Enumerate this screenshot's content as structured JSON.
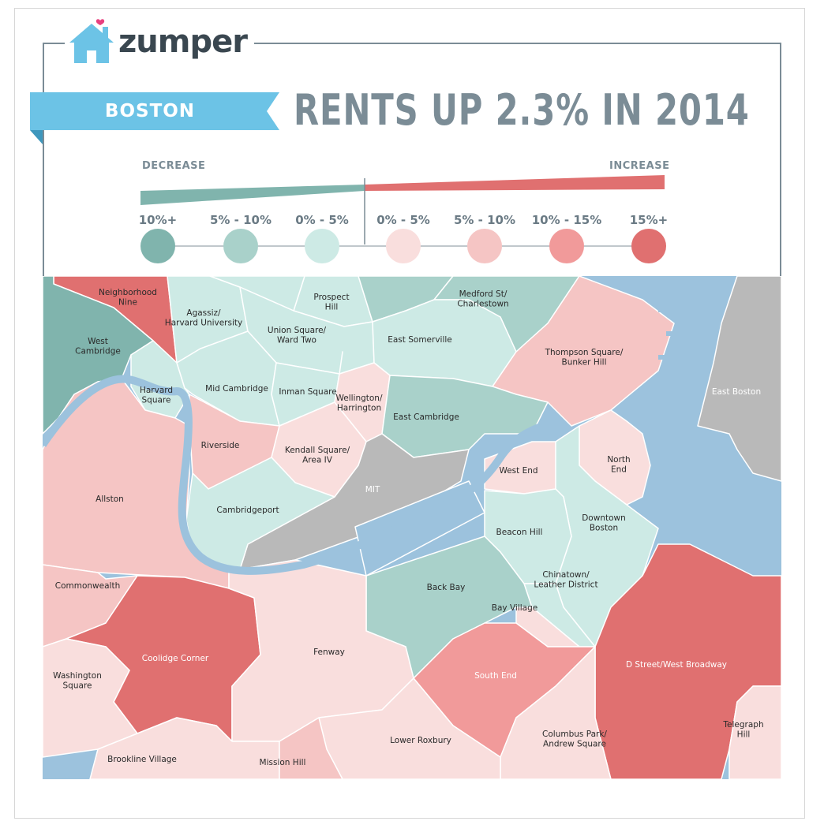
{
  "brand": "zumper",
  "city": "BOSTON",
  "headline": "RENTS UP 2.3% IN 2014",
  "legend": {
    "decrease_label": "DECREASE",
    "increase_label": "INCREASE",
    "buckets": [
      {
        "label": "10%+",
        "color": "#80b4ad"
      },
      {
        "label": "5% - 10%",
        "color": "#a9d1ca"
      },
      {
        "label": "0% - 5%",
        "color": "#cdeae5"
      },
      {
        "label": "0% - 5%",
        "color": "#f9dedd"
      },
      {
        "label": "5% - 10%",
        "color": "#f5c5c4"
      },
      {
        "label": "10% - 15%",
        "color": "#f19a9a"
      },
      {
        "label": "15%+",
        "color": "#e07070"
      }
    ]
  },
  "colors": {
    "water": "#9cc2dd",
    "nodata": "#b9b9b9",
    "ribbon": "#6cc3e6",
    "text_gray": "#7b8c96"
  },
  "neighborhoods": [
    {
      "name": "Neighborhood Nine",
      "lines": [
        "Neighborhood",
        "Nine"
      ]
    },
    {
      "name": "Agassiz/ Harvard University",
      "lines": [
        "Agassiz/",
        "Harvard University"
      ]
    },
    {
      "name": "Prospect Hill",
      "lines": [
        "Prospect",
        "Hill"
      ]
    },
    {
      "name": "Medford St/ Charlestown",
      "lines": [
        "Medford St/",
        "Charlestown"
      ]
    },
    {
      "name": "West Cambridge",
      "lines": [
        "West",
        "Cambridge"
      ]
    },
    {
      "name": "Union Square/ Ward Two",
      "lines": [
        "Union Square/",
        "Ward Two"
      ]
    },
    {
      "name": "East Somerville",
      "lines": [
        "East Somerville"
      ]
    },
    {
      "name": "Thompson Square/ Bunker Hill",
      "lines": [
        "Thompson Square/",
        "Bunker Hill"
      ]
    },
    {
      "name": "Harvard Square",
      "lines": [
        "Harvard",
        "Square"
      ]
    },
    {
      "name": "Mid Cambridge",
      "lines": [
        "Mid Cambridge"
      ]
    },
    {
      "name": "Inman Square",
      "lines": [
        "Inman Square"
      ]
    },
    {
      "name": "Wellington/ Harrington",
      "lines": [
        "Wellington/",
        "Harrington"
      ]
    },
    {
      "name": "East Cambridge",
      "lines": [
        "East Cambridge"
      ]
    },
    {
      "name": "East Boston",
      "lines": [
        "East Boston"
      ]
    },
    {
      "name": "Riverside",
      "lines": [
        "Riverside"
      ]
    },
    {
      "name": "Kendall Square/ Area IV",
      "lines": [
        "Kendall Square/",
        "Area IV"
      ]
    },
    {
      "name": "North End",
      "lines": [
        "North",
        "End"
      ]
    },
    {
      "name": "West End",
      "lines": [
        "West End"
      ]
    },
    {
      "name": "Allston",
      "lines": [
        "Allston"
      ]
    },
    {
      "name": "MIT",
      "lines": [
        "MIT"
      ]
    },
    {
      "name": "Cambridgeport",
      "lines": [
        "Cambridgeport"
      ]
    },
    {
      "name": "Downtown Boston",
      "lines": [
        "Downtown",
        "Boston"
      ]
    },
    {
      "name": "Beacon Hill",
      "lines": [
        "Beacon Hill"
      ]
    },
    {
      "name": "Commonwealth",
      "lines": [
        "Commonwealth"
      ]
    },
    {
      "name": "Back Bay",
      "lines": [
        "Back Bay"
      ]
    },
    {
      "name": "Chinatown/ Leather District",
      "lines": [
        "Chinatown/",
        "Leather District"
      ]
    },
    {
      "name": "Bay Village",
      "lines": [
        "Bay Village"
      ]
    },
    {
      "name": "Coolidge Corner",
      "lines": [
        "Coolidge Corner"
      ]
    },
    {
      "name": "Fenway",
      "lines": [
        "Fenway"
      ]
    },
    {
      "name": "D Street/West Broadway",
      "lines": [
        "D Street/West Broadway"
      ]
    },
    {
      "name": "Washington Square",
      "lines": [
        "Washington",
        "Square"
      ]
    },
    {
      "name": "South End",
      "lines": [
        "South End"
      ]
    },
    {
      "name": "Telegraph Hill",
      "lines": [
        "Telegraph",
        "Hill"
      ]
    },
    {
      "name": "Columbus Park/ Andrew Square",
      "lines": [
        "Columbus Park/",
        "Andrew Square"
      ]
    },
    {
      "name": "Lower Roxbury",
      "lines": [
        "Lower Roxbury"
      ]
    },
    {
      "name": "Brookline Village",
      "lines": [
        "Brookline Village"
      ]
    },
    {
      "name": "Mission Hill",
      "lines": [
        "Mission Hill"
      ]
    }
  ]
}
